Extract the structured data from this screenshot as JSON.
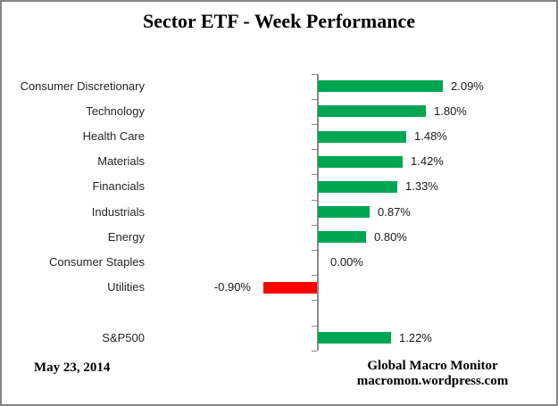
{
  "title": "Sector ETF - Week Performance",
  "footer": {
    "date": "May 23, 2014",
    "credit_line1": "Global Macro Monitor",
    "credit_line2": "macromon.wordpress.com"
  },
  "chart_data": {
    "type": "bar",
    "orientation": "horizontal",
    "title": "Sector ETF - Week Performance",
    "unit": "percent",
    "xlim": [
      -1.6,
      2.6
    ],
    "grid": false,
    "legend": false,
    "categories": [
      "Consumer Discretionary",
      "Technology",
      "Health Care",
      "Materials",
      "Financials",
      "Industrials",
      "Energy",
      "Consumer Staples",
      "Utilities",
      "",
      "S&P500"
    ],
    "values": [
      2.09,
      1.8,
      1.48,
      1.42,
      1.33,
      0.87,
      0.8,
      0.0,
      -0.9,
      null,
      1.22
    ],
    "rows": [
      {
        "label": "Consumer Discretionary",
        "value": 2.09,
        "display": "2.09%"
      },
      {
        "label": "Technology",
        "value": 1.8,
        "display": "1.80%"
      },
      {
        "label": "Health Care",
        "value": 1.48,
        "display": "1.48%"
      },
      {
        "label": "Materials",
        "value": 1.42,
        "display": "1.42%"
      },
      {
        "label": "Financials",
        "value": 1.33,
        "display": "1.33%"
      },
      {
        "label": "Industrials",
        "value": 0.87,
        "display": "0.87%"
      },
      {
        "label": "Energy",
        "value": 0.8,
        "display": "0.80%"
      },
      {
        "label": "Consumer Staples",
        "value": 0.0,
        "display": "0.00%"
      },
      {
        "label": "Utilities",
        "value": -0.9,
        "display": "-0.90%"
      },
      {
        "label": "",
        "value": null,
        "display": ""
      },
      {
        "label": "S&P500",
        "value": 1.22,
        "display": "1.22%"
      }
    ],
    "palette": {
      "positive": "#00A651",
      "negative": "#FF0000",
      "axis": "#8C8C8C",
      "frame_border": "#848484",
      "category_text": "#262626",
      "value_text": "#1A1A1A"
    }
  }
}
